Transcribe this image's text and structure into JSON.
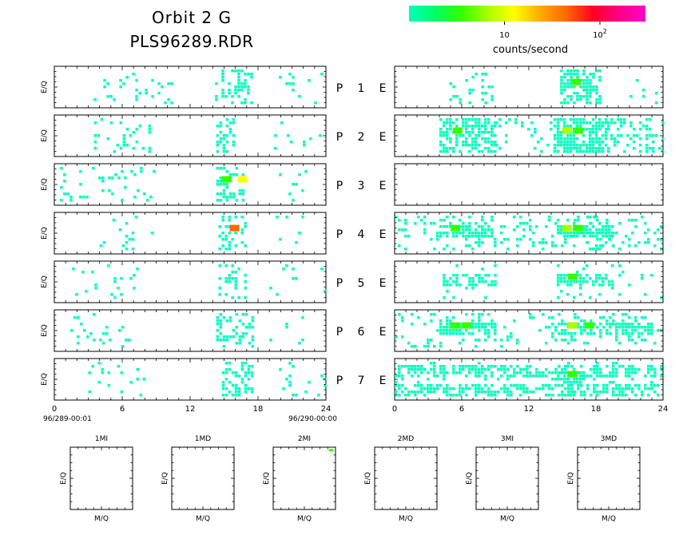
{
  "header": {
    "title": "Orbit 2 G",
    "file": "PLS96289.RDR"
  },
  "colorbar": {
    "label": "counts/second",
    "ticks": [
      {
        "base": "10",
        "exp": "",
        "value": 10
      },
      {
        "base": "10",
        "exp": "2",
        "value": 100
      }
    ],
    "colors": [
      "#00ffbb",
      "#00ff66",
      "#33ff00",
      "#aaff00",
      "#ffff00",
      "#ffaa00",
      "#ff6600",
      "#ff0022",
      "#ff0088",
      "#ff00cc"
    ],
    "min_value": 1,
    "max_value": 300
  },
  "chart_data": {
    "type": "heatmap",
    "panel_ylabel": "E/Q",
    "row_label_prefix": "P",
    "row_label_suffix": "E",
    "x_ticks": [
      "0",
      "6",
      "12",
      "18",
      "24"
    ],
    "xlim": [
      0,
      24
    ],
    "time_start_label": "96/289-00:01",
    "time_end_label": "96/290-00:00",
    "rows": [
      {
        "number": "1",
        "left": [
          {
            "t0": 3.2,
            "t1": 10.5,
            "d": 0.13
          },
          {
            "t0": 14.2,
            "t1": 17.5,
            "d": 0.35
          },
          {
            "t0": 19,
            "t1": 24,
            "d": 0.06
          }
        ],
        "right": [
          {
            "t0": 4.6,
            "t1": 8.8,
            "d": 0.12
          },
          {
            "t0": 14.8,
            "t1": 18.5,
            "d": 0.6,
            "hot": [
              {
                "t": 15.8,
                "c": 2
              }
            ]
          },
          {
            "t0": 21,
            "t1": 24,
            "d": 0.05
          }
        ]
      },
      {
        "number": "2",
        "left": [
          {
            "t0": 3.5,
            "t1": 8.5,
            "d": 0.12
          },
          {
            "t0": 14.3,
            "t1": 16,
            "d": 0.4
          },
          {
            "t0": 18,
            "t1": 24,
            "d": 0.04
          }
        ],
        "right": [
          {
            "t0": 4,
            "t1": 9,
            "d": 0.65,
            "hot": [
              {
                "t": 5.2,
                "c": 2
              }
            ]
          },
          {
            "t0": 9,
            "t1": 14,
            "d": 0.12
          },
          {
            "t0": 14.2,
            "t1": 19,
            "d": 0.75,
            "hot": [
              {
                "t": 15,
                "c": 3
              },
              {
                "t": 16,
                "c": 2
              }
            ]
          },
          {
            "t0": 19,
            "t1": 24,
            "d": 0.3
          }
        ]
      },
      {
        "number": "3",
        "left": [
          {
            "t0": 0.5,
            "t1": 9,
            "d": 0.13
          },
          {
            "t0": 14.3,
            "t1": 16.8,
            "d": 0.4,
            "hot": [
              {
                "t": 14.8,
                "c": 2
              },
              {
                "t": 16.2,
                "c": 4
              }
            ]
          },
          {
            "t0": 19,
            "t1": 24,
            "d": 0.05
          }
        ],
        "right": []
      },
      {
        "number": "4",
        "left": [
          {
            "t0": 4,
            "t1": 9,
            "d": 0.08
          },
          {
            "t0": 14.5,
            "t1": 17,
            "d": 0.3,
            "hot": [
              {
                "t": 15.5,
                "c": 6
              }
            ]
          },
          {
            "t0": 19,
            "t1": 23,
            "d": 0.05
          }
        ],
        "right": [
          {
            "t0": 0,
            "t1": 24,
            "d": 0.15
          },
          {
            "t0": 4,
            "t1": 9,
            "d": 0.7,
            "band": true,
            "hot": [
              {
                "t": 5,
                "c": 2
              }
            ]
          },
          {
            "t0": 14.5,
            "t1": 19.5,
            "d": 0.7,
            "band": true,
            "hot": [
              {
                "t": 15,
                "c": 3
              },
              {
                "t": 16,
                "c": 2
              }
            ]
          }
        ]
      },
      {
        "number": "5",
        "left": [
          {
            "t0": 1,
            "t1": 8,
            "d": 0.06
          },
          {
            "t0": 14.5,
            "t1": 17,
            "d": 0.25
          },
          {
            "t0": 19,
            "t1": 24,
            "d": 0.03
          }
        ],
        "right": [
          {
            "t0": 4.3,
            "t1": 9,
            "d": 0.55,
            "band": true
          },
          {
            "t0": 14.5,
            "t1": 19.5,
            "d": 0.6,
            "band": true,
            "hot": [
              {
                "t": 15.5,
                "c": 2
              }
            ]
          },
          {
            "t0": 20,
            "t1": 24,
            "d": 0.1
          }
        ]
      },
      {
        "number": "6",
        "left": [
          {
            "t0": 0,
            "t1": 7,
            "d": 0.06
          },
          {
            "t0": 14.3,
            "t1": 17.5,
            "d": 0.4
          },
          {
            "t0": 19,
            "t1": 24,
            "d": 0.05
          }
        ],
        "right": [
          {
            "t0": 0,
            "t1": 24,
            "d": 0.12
          },
          {
            "t0": 4,
            "t1": 9,
            "d": 0.75,
            "band": true,
            "hot": [
              {
                "t": 5,
                "c": 2
              },
              {
                "t": 6,
                "c": 2
              }
            ]
          },
          {
            "t0": 14,
            "t1": 23,
            "d": 0.7,
            "band": true,
            "hot": [
              {
                "t": 15.5,
                "c": 3
              },
              {
                "t": 17,
                "c": 2
              }
            ]
          }
        ]
      },
      {
        "number": "7",
        "left": [
          {
            "t0": 3,
            "t1": 8,
            "d": 0.1
          },
          {
            "t0": 14.8,
            "t1": 17.5,
            "d": 0.45
          },
          {
            "t0": 19,
            "t1": 24,
            "d": 0.05
          }
        ],
        "right": [
          {
            "t0": 0,
            "t1": 24,
            "d": 0.55,
            "twoband": true
          },
          {
            "t0": 14.5,
            "t1": 17,
            "d": 0.7,
            "band": true,
            "hot": [
              {
                "t": 15.5,
                "c": 2
              }
            ]
          }
        ]
      }
    ],
    "mass_panels": [
      {
        "title": "1MI",
        "xlabel": "M/Q",
        "ylabel": "E/Q",
        "hits": []
      },
      {
        "title": "1MD",
        "xlabel": "M/Q",
        "ylabel": "E/Q",
        "hits": []
      },
      {
        "title": "2MI",
        "xlabel": "M/Q",
        "ylabel": "E/Q",
        "hits": [
          {
            "x": 0.92,
            "y": 0.96,
            "c": 2
          }
        ]
      },
      {
        "title": "2MD",
        "xlabel": "M/Q",
        "ylabel": "E/Q",
        "hits": []
      },
      {
        "title": "3MI",
        "xlabel": "M/Q",
        "ylabel": "E/Q",
        "hits": []
      },
      {
        "title": "3MD",
        "xlabel": "M/Q",
        "ylabel": "E/Q",
        "hits": []
      }
    ]
  }
}
